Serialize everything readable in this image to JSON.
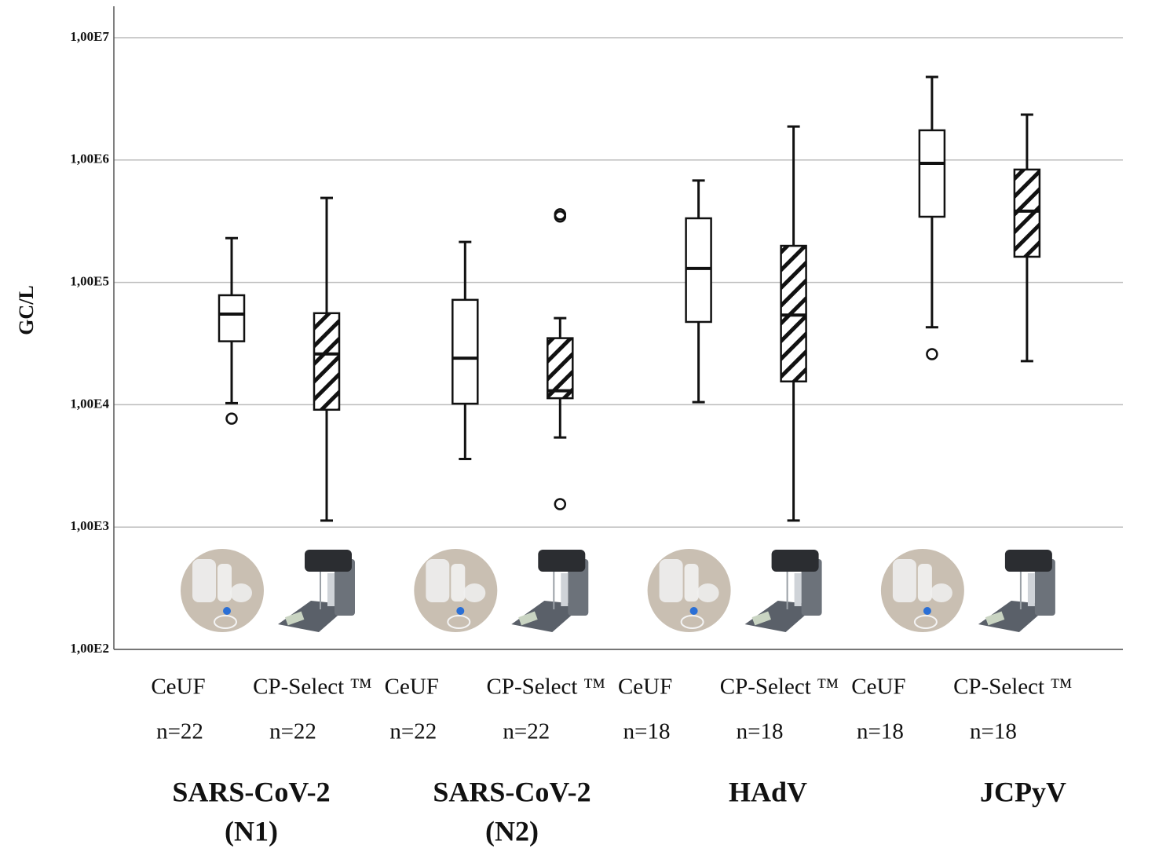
{
  "chart_data": {
    "type": "boxplot",
    "ylabel": "GC/L",
    "ylog": true,
    "grid": true,
    "ylim": [
      100,
      10000000
    ],
    "yticks": [
      {
        "value": 100,
        "label": "1,00E2"
      },
      {
        "value": 1000,
        "label": "1,00E3"
      },
      {
        "value": 10000,
        "label": "1,00E4"
      },
      {
        "value": 100000,
        "label": "1,00E5"
      },
      {
        "value": 1000000,
        "label": "1,00E6"
      },
      {
        "value": 10000000,
        "label": "1,00E7"
      }
    ],
    "groups": [
      {
        "label": [
          "SARS-CoV-2",
          "(N1)"
        ]
      },
      {
        "label": [
          "SARS-CoV-2",
          "(N2)"
        ]
      },
      {
        "label": [
          "HAdV"
        ]
      },
      {
        "label": [
          "JCPyV"
        ]
      }
    ],
    "boxes": [
      {
        "category": "CeUF",
        "n": "n=22",
        "hatched": false,
        "whislo": 10300,
        "q1": 33000,
        "med": 55000,
        "q3": 78500,
        "whishi": 230000,
        "fliers": [
          7700
        ]
      },
      {
        "category": "CP-Select ™",
        "n": "n=22",
        "hatched": true,
        "whislo": 1130,
        "q1": 9100,
        "med": 26000,
        "q3": 56000,
        "whishi": 490000,
        "fliers": []
      },
      {
        "category": "CeUF",
        "n": "n=22",
        "hatched": false,
        "whislo": 3600,
        "q1": 10200,
        "med": 24000,
        "q3": 72000,
        "whishi": 214000,
        "fliers": []
      },
      {
        "category": "CP-Select ™",
        "n": "n=22",
        "hatched": true,
        "whislo": 5400,
        "q1": 11300,
        "med": 13000,
        "q3": 35000,
        "whishi": 51000,
        "fliers": [
          360000,
          345000,
          1540
        ]
      },
      {
        "category": "CeUF",
        "n": "n=18",
        "hatched": false,
        "whislo": 10500,
        "q1": 47500,
        "med": 130000,
        "q3": 334000,
        "whishi": 680000,
        "fliers": []
      },
      {
        "category": "CP-Select ™",
        "n": "n=18",
        "hatched": true,
        "whislo": 1130,
        "q1": 15500,
        "med": 54000,
        "q3": 199000,
        "whishi": 1880000,
        "fliers": []
      },
      {
        "category": "CeUF",
        "n": "n=18",
        "hatched": false,
        "whislo": 43000,
        "q1": 344000,
        "med": 940000,
        "q3": 1750000,
        "whishi": 4780000,
        "fliers": [
          25900
        ]
      },
      {
        "category": "CP-Select ™",
        "n": "n=18",
        "hatched": true,
        "whislo": 22700,
        "q1": 162000,
        "med": 382000,
        "q3": 836000,
        "whishi": 2350000,
        "fliers": []
      }
    ]
  }
}
